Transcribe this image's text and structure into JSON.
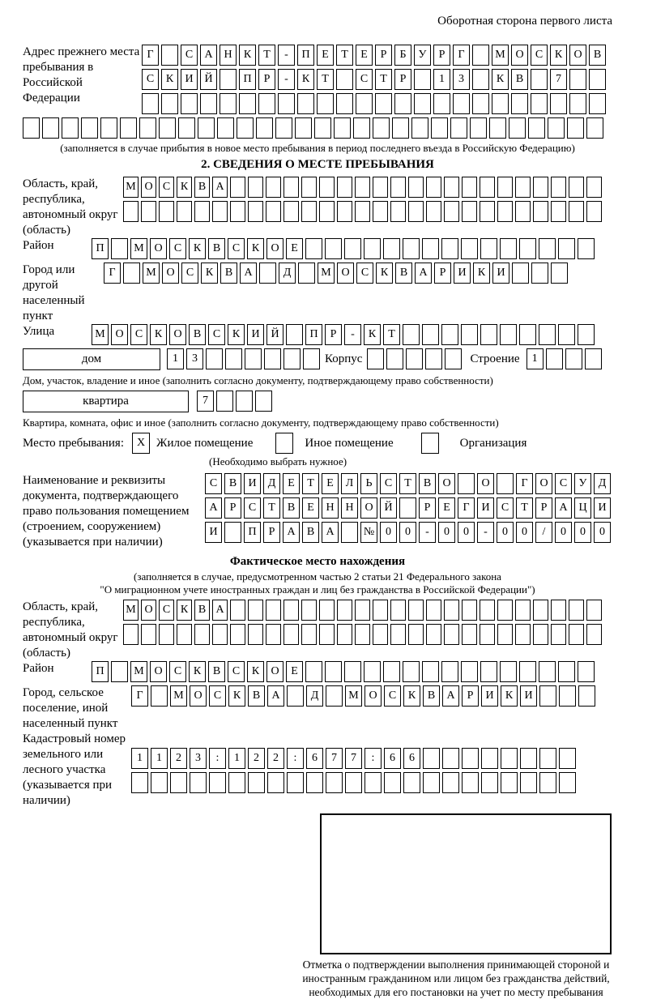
{
  "page": {
    "side_note": "Оборотная сторона первого листа"
  },
  "prev_address": {
    "label": "Адрес прежнего места пребывания в Российской Федерации",
    "row1": {
      "chars": "Г САНКТ-ПЕТЕРБУРГ МОСКОВ",
      "len": 24
    },
    "row2": {
      "chars": "СКИЙ ПР-КТ СТР 13 КВ 7",
      "len": 24
    },
    "row3": {
      "chars": "",
      "len": 24
    },
    "row4": {
      "chars": "",
      "len": 30
    },
    "caption": "(заполняется в случае прибытия в новое место пребывания в период последнего въезда в Российскую Федерацию)"
  },
  "section2": {
    "title": "2. СВЕДЕНИЯ О МЕСТЕ ПРЕБЫВАНИЯ",
    "region": {
      "label": "Область, край, республика, автономный округ (область)",
      "row1": {
        "chars": "МОСКВА",
        "len": 27
      },
      "row2": {
        "chars": "",
        "len": 27
      }
    },
    "district": {
      "label": "Район",
      "row1": {
        "chars": "П МОСКВСКОЕ",
        "len": 26
      }
    },
    "city": {
      "label": "Город или другой населенный пункт",
      "row1": {
        "chars": "Г МОСКВА Д МОСКВАРИКИ",
        "len": 24
      }
    },
    "street": {
      "label": "Улица",
      "row1": {
        "chars": "МОСКОВСКИЙ ПР-КТ",
        "len": 26
      }
    },
    "house": {
      "box_label": "дом",
      "cells": {
        "chars": "13",
        "len": 8
      },
      "korpus_label": "Корпус",
      "korpus_cells": {
        "chars": "",
        "len": 5
      },
      "stroenie_label": "Строение",
      "stroenie_cells": {
        "chars": "1",
        "len": 4
      },
      "caption": "Дом, участок, владение и иное (заполнить согласно документу, подтверждающему право собственности)"
    },
    "apartment": {
      "box_label": "квартира",
      "cells": {
        "chars": "7",
        "len": 4
      },
      "caption": "Квартира, комната, офис и иное (заполнить согласно документу, подтверждающему право собственности)"
    },
    "presence": {
      "label": "Место пребывания:",
      "options": [
        {
          "label": "Жилое помещение",
          "mark": "X"
        },
        {
          "label": "Иное помещение",
          "mark": ""
        },
        {
          "label": "Организация",
          "mark": ""
        }
      ],
      "caption": "(Необходимо выбрать нужное)"
    },
    "document": {
      "label": "Наименование и реквизиты документа, подтверждающего право пользования помещением (строением, сооружением) (указывается при наличии)",
      "row1": {
        "chars": "СВИДЕТЕЛЬСТВО О ГОСУД",
        "len": 21
      },
      "row2": {
        "chars": "АРСТВЕННОЙ РЕГИСТРАЦИ",
        "len": 21
      },
      "row3": {
        "chars": "И ПРАВА №00-00-00/000",
        "len": 21
      }
    }
  },
  "actual_location": {
    "title": "Фактическое место нахождения",
    "caption_line1": "(заполняется в случае, предусмотренном частью 2 статьи 21 Федерального закона",
    "caption_line2": "\"О миграционном учете иностранных граждан и лиц без гражданства в Российской Федерации\")",
    "region": {
      "label": "Область, край, республика, автономный округ (область)",
      "row1": {
        "chars": "МОСКВА",
        "len": 27
      },
      "row2": {
        "chars": "",
        "len": 27
      }
    },
    "district": {
      "label": "Район",
      "row1": {
        "chars": "П МОСКВСКОЕ",
        "len": 26
      }
    },
    "city": {
      "label": "Город, сельское поселение, иной населенный пункт",
      "row1": {
        "chars": "Г МОСКВА Д МОСКВАРИКИ",
        "len": 24
      }
    },
    "cadastral": {
      "label": "Кадастровый номер земельного или лесного участка (указывается при наличии)",
      "row1": {
        "chars": "1123:122:677:66",
        "len": 23
      },
      "row2": {
        "chars": "",
        "len": 23
      }
    }
  },
  "stamp": {
    "caption": "Отметка о подтверждении выполнения принимающей стороной и иностранным гражданином или лицом без гражданства действий, необходимых для его постановки на учет по месту пребывания"
  }
}
